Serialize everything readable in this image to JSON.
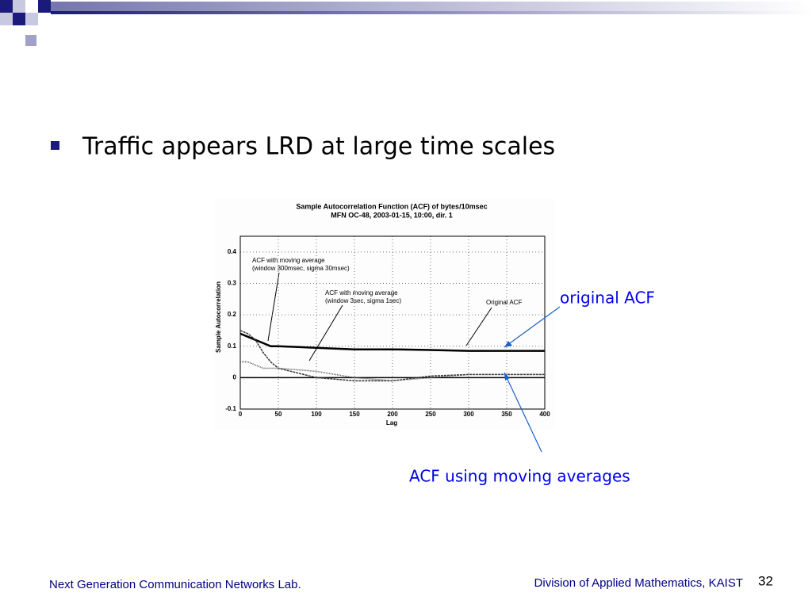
{
  "slide": {
    "bullet": "Traffic appears LRD at large time scales",
    "page_number": "32"
  },
  "figure": {
    "chart_data": {
      "type": "line",
      "title_lines": [
        "Sample Autocorrelation Function (ACF) of bytes/10msec",
        "MFN OC-48, 2003-01-15, 10:00, dir. 1"
      ],
      "xlabel": "Lag",
      "ylabel": "Sample Autocorrelation",
      "xlim": [
        0,
        400
      ],
      "ylim": [
        -0.1,
        0.45
      ],
      "xticks": [
        0,
        50,
        100,
        150,
        200,
        250,
        300,
        350,
        400
      ],
      "yticks": [
        -0.1,
        0,
        0.1,
        0.2,
        0.3,
        0.4
      ],
      "grid": true,
      "x": [
        0,
        10,
        20,
        30,
        40,
        50,
        100,
        150,
        200,
        250,
        300,
        350,
        400
      ],
      "series": [
        {
          "name": "Original ACF",
          "color": "#000000",
          "values": [
            0.14,
            0.13,
            0.12,
            0.11,
            0.1,
            0.1,
            0.095,
            0.09,
            0.09,
            0.088,
            0.085,
            0.085,
            0.085
          ]
        },
        {
          "name": "ACF with moving average (window 300msec, sigma 30msec)",
          "color": "#333333",
          "values": [
            0.15,
            0.14,
            0.12,
            0.08,
            0.05,
            0.03,
            0.0,
            -0.01,
            -0.01,
            0.005,
            0.01,
            0.01,
            0.01
          ]
        },
        {
          "name": "ACF with moving average (window 3sec, sigma 1sec)",
          "color": "#555555",
          "values": [
            0.05,
            0.05,
            0.04,
            0.03,
            0.03,
            0.03,
            0.02,
            0.0,
            -0.01,
            0.0,
            0.01,
            0.01,
            0.01
          ]
        }
      ],
      "annotations": [
        [
          "ACF with moving average",
          "(window 300msec, sigma 30msec)"
        ],
        [
          "ACF with moving average",
          "(window 3sec, sigma 1sec)"
        ],
        [
          "Original ACF"
        ]
      ]
    },
    "callouts": [
      "original ACF",
      "ACF using moving averages"
    ]
  },
  "footer": {
    "left": "Next Generation Communication Networks Lab.",
    "right": "Division of Applied Mathematics, KAIST"
  }
}
